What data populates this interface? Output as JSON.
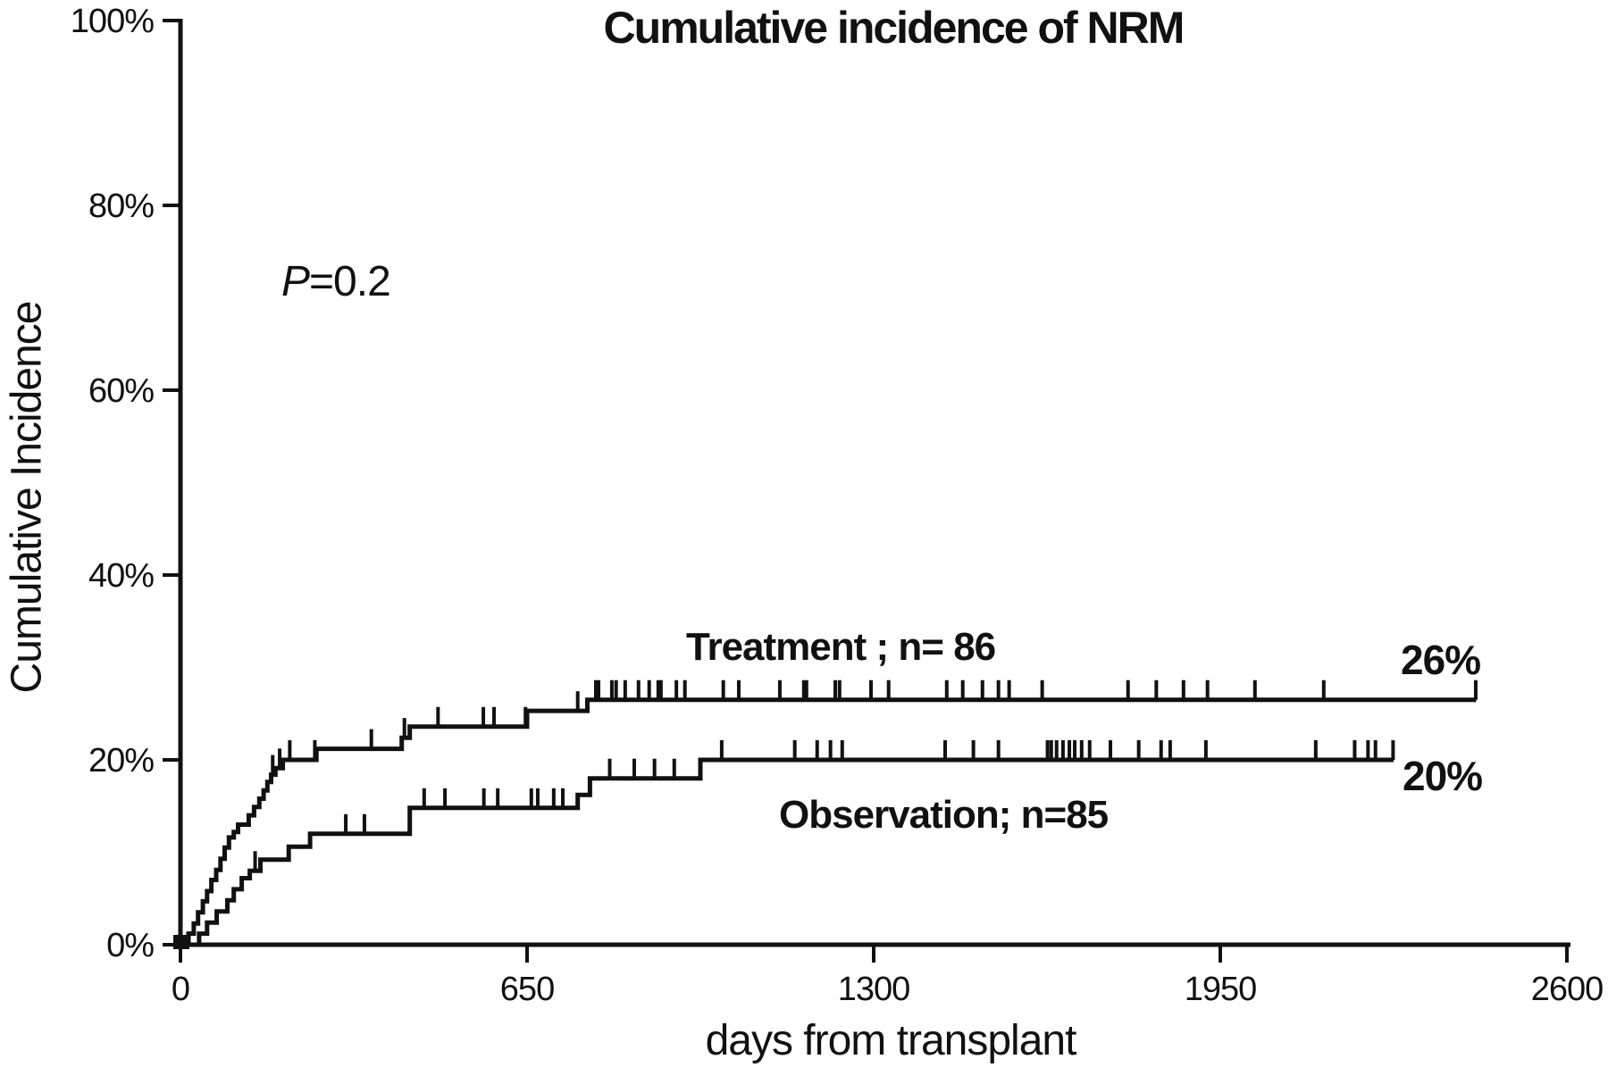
{
  "figure": {
    "background": "#ffffff",
    "ink_color": "#111111"
  },
  "chart_data": {
    "type": "line",
    "variant": "cumulative-incidence-step",
    "title": "Cumulative incidence of NRM",
    "xlabel": "days from transplant",
    "ylabel": "Cumulative Incidence",
    "annotation": {
      "italic": "P",
      "rest": "=0.2"
    },
    "xlim": [
      0,
      2600
    ],
    "ylim": [
      0,
      100
    ],
    "grid": false,
    "legend_position": "inline-labels",
    "x_ticks": [
      {
        "day": 0,
        "label": "0"
      },
      {
        "day": 650,
        "label": "650"
      },
      {
        "day": 1300,
        "label": "1300"
      },
      {
        "day": 1950,
        "label": "1950"
      },
      {
        "day": 2600,
        "label": "2600"
      }
    ],
    "y_ticks": [
      {
        "pct": 0,
        "label": "0%"
      },
      {
        "pct": 20,
        "label": "20%"
      },
      {
        "pct": 40,
        "label": "40%"
      },
      {
        "pct": 60,
        "label": "60%"
      },
      {
        "pct": 80,
        "label": "80%"
      },
      {
        "pct": 100,
        "label": "100%"
      }
    ],
    "series": [
      {
        "name": "Treatment ; n= 86",
        "n": 86,
        "final_pct": 26,
        "final_value_label": "26%",
        "end_day": 2430,
        "steps": [
          [
            0,
            0
          ],
          [
            15,
            1.2
          ],
          [
            25,
            2.3
          ],
          [
            33,
            3.5
          ],
          [
            42,
            4.7
          ],
          [
            50,
            5.8
          ],
          [
            58,
            7.0
          ],
          [
            67,
            8.1
          ],
          [
            75,
            9.3
          ],
          [
            83,
            10.5
          ],
          [
            91,
            11.6
          ],
          [
            100,
            12.2
          ],
          [
            108,
            13.0
          ],
          [
            128,
            14.0
          ],
          [
            138,
            14.9
          ],
          [
            148,
            15.8
          ],
          [
            156,
            16.7
          ],
          [
            163,
            17.6
          ],
          [
            170,
            18.4
          ],
          [
            178,
            19.1
          ],
          [
            192,
            20.0
          ],
          [
            255,
            21.2
          ],
          [
            415,
            22.4
          ],
          [
            430,
            23.6
          ],
          [
            650,
            25.3
          ],
          [
            763,
            26.5
          ]
        ],
        "censor_days": [
          173,
          186,
          205,
          252,
          358,
          420,
          483,
          568,
          588,
          647,
          745,
          779,
          784,
          809,
          817,
          834,
          859,
          879,
          896,
          901,
          930,
          946,
          1018,
          1047,
          1124,
          1169,
          1174,
          1228,
          1236,
          1295,
          1328,
          1437,
          1467,
          1504,
          1534,
          1554,
          1616,
          1777,
          1830,
          1881,
          1926,
          2015,
          2144,
          2429
        ]
      },
      {
        "name": "Observation; n=85",
        "n": 85,
        "final_pct": 20,
        "final_value_label": "20%",
        "end_day": 2275,
        "steps": [
          [
            0,
            0
          ],
          [
            35,
            1.2
          ],
          [
            50,
            2.4
          ],
          [
            68,
            3.6
          ],
          [
            88,
            4.8
          ],
          [
            100,
            6.0
          ],
          [
            115,
            7.2
          ],
          [
            130,
            8.0
          ],
          [
            150,
            9.2
          ],
          [
            203,
            10.6
          ],
          [
            243,
            12.0
          ],
          [
            430,
            14.8
          ],
          [
            745,
            16.2
          ],
          [
            768,
            18.0
          ],
          [
            975,
            20.0
          ]
        ],
        "censor_days": [
          140,
          310,
          345,
          457,
          496,
          569,
          595,
          658,
          670,
          700,
          717,
          805,
          851,
          889,
          926,
          1015,
          1152,
          1194,
          1219,
          1241,
          1434,
          1487,
          1534,
          1626,
          1633,
          1643,
          1655,
          1667,
          1677,
          1690,
          1705,
          1744,
          1797,
          1839,
          1856,
          1923,
          2129,
          2202,
          2227,
          2241,
          2274
        ]
      }
    ]
  }
}
